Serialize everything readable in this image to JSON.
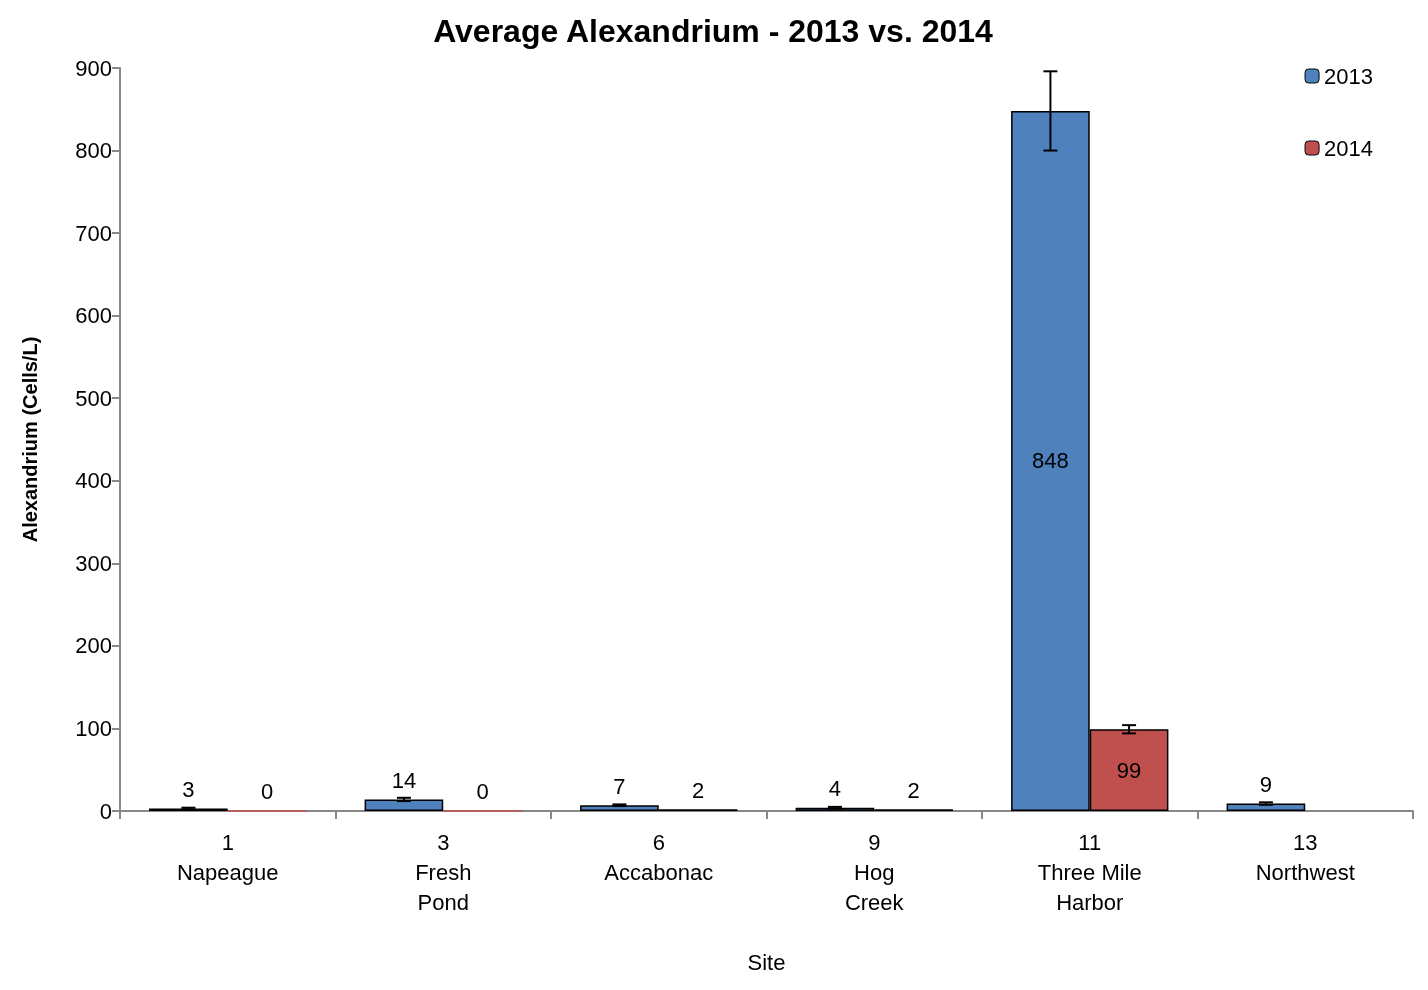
{
  "chart_data": {
    "type": "bar",
    "title": "Average Alexandrium - 2013 vs. 2014",
    "xlabel": "Site",
    "ylabel": "Alexandrium (Cells/L)",
    "categories": [
      "1\nNapeague",
      "3\nFresh\nPond",
      "6\nAccabonac",
      "9\nHog\nCreek",
      "11\nThree Mile\nHarbor",
      "13\nNorthwest"
    ],
    "series": [
      {
        "name": "2013",
        "color": "#4f81bd",
        "values": [
          3,
          14,
          7,
          4,
          848,
          9
        ],
        "errors": [
          1,
          2,
          1,
          1,
          48,
          1.5
        ]
      },
      {
        "name": "2014",
        "color": "#c0504d",
        "values": [
          0,
          0,
          2,
          2,
          99,
          null
        ],
        "errors": [
          null,
          null,
          null,
          null,
          5,
          null
        ]
      }
    ],
    "ylim": [
      0,
      900
    ],
    "yticks": [
      0,
      100,
      200,
      300,
      400,
      500,
      600,
      700,
      800,
      900
    ],
    "grid": false,
    "legend": "top right",
    "data_labels": true
  }
}
